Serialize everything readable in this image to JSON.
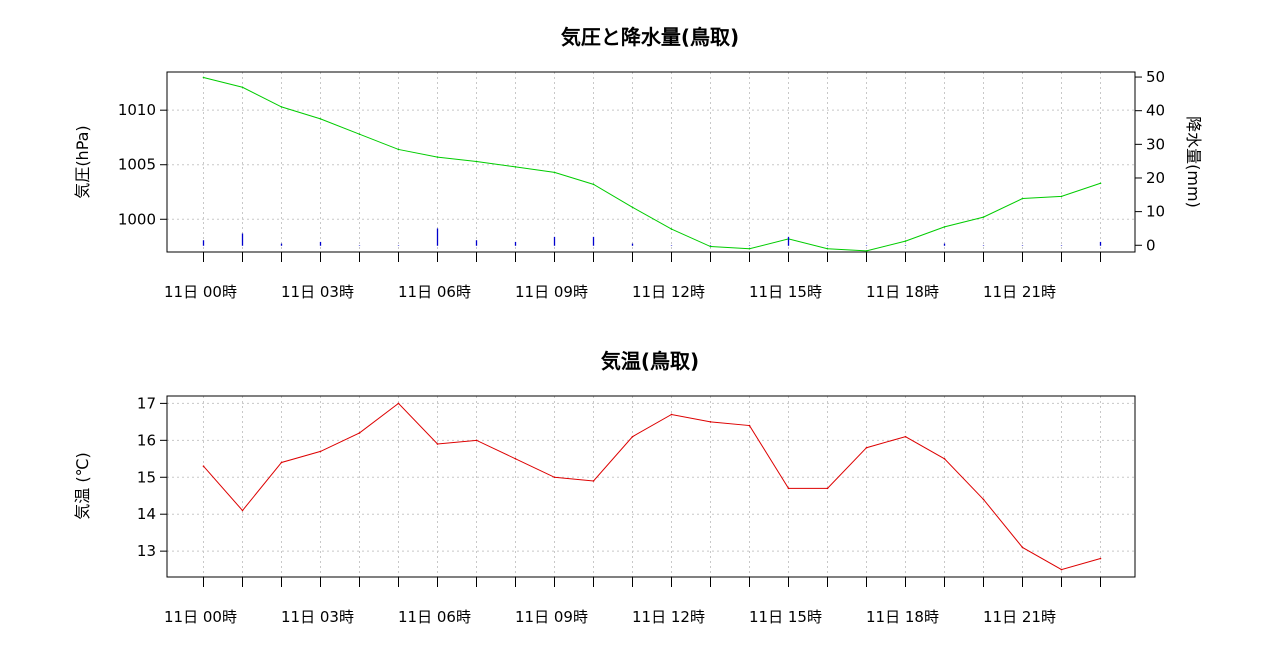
{
  "chart_data": [
    {
      "type": "line",
      "title": "気圧と降水量(鳥取)",
      "ylabel": "気圧(hPa)",
      "y2label": "降水量(mm)",
      "categories": [
        "00",
        "01",
        "02",
        "03",
        "04",
        "05",
        "06",
        "07",
        "08",
        "09",
        "10",
        "11",
        "12",
        "13",
        "14",
        "15",
        "16",
        "17",
        "18",
        "19",
        "20",
        "21",
        "22",
        "23"
      ],
      "x_tick_labels": [
        "11日 00時",
        "11日 03時",
        "11日 06時",
        "11日 09時",
        "11日 12時",
        "11日 15時",
        "11日 18時",
        "11日 21時"
      ],
      "x_tick_label_every": 3,
      "ylim": [
        997,
        1013.5
      ],
      "y_ticks": [
        1000,
        1005,
        1010
      ],
      "y2lim": [
        -2,
        51.5
      ],
      "y2_ticks": [
        0,
        10,
        20,
        30,
        40,
        50
      ],
      "grid": true,
      "series": [
        {
          "axis": "left",
          "color": "#00cc00",
          "values": [
            1013.0,
            1012.1,
            1010.3,
            1009.2,
            1007.8,
            1006.4,
            1005.7,
            1005.3,
            1004.8,
            1004.3,
            1003.2,
            1001.1,
            999.1,
            997.5,
            997.3,
            998.2,
            997.3,
            997.1,
            998.0,
            999.3,
            1000.2,
            1001.9,
            1002.1,
            1003.3
          ],
          "type": "line"
        },
        {
          "axis": "right",
          "color": "#0000cc",
          "values": [
            1.5,
            3.5,
            0.5,
            1.0,
            0.0,
            0.0,
            5.0,
            1.5,
            1.0,
            2.5,
            2.5,
            0.5,
            0.0,
            0.0,
            0.0,
            2.5,
            0.0,
            0.0,
            0.0,
            0.5,
            0.0,
            0.0,
            0.0,
            1.0
          ],
          "type": "bar"
        }
      ]
    },
    {
      "type": "line",
      "title": "気温(鳥取)",
      "ylabel": "気温 (℃)",
      "categories": [
        "00",
        "01",
        "02",
        "03",
        "04",
        "05",
        "06",
        "07",
        "08",
        "09",
        "10",
        "11",
        "12",
        "13",
        "14",
        "15",
        "16",
        "17",
        "18",
        "19",
        "20",
        "21",
        "22",
        "23"
      ],
      "x_tick_labels": [
        "11日 00時",
        "11日 03時",
        "11日 06時",
        "11日 09時",
        "11日 12時",
        "11日 15時",
        "11日 18時",
        "11日 21時"
      ],
      "x_tick_label_every": 3,
      "ylim": [
        12.3,
        17.2
      ],
      "y_ticks": [
        13,
        14,
        15,
        16,
        17
      ],
      "grid": true,
      "series": [
        {
          "axis": "left",
          "color": "#dd0000",
          "values": [
            15.3,
            14.1,
            15.4,
            15.7,
            16.2,
            17.0,
            15.9,
            16.0,
            15.5,
            15.0,
            14.9,
            16.1,
            16.7,
            16.5,
            16.4,
            14.7,
            14.7,
            15.8,
            16.1,
            15.5,
            14.4,
            13.1,
            12.5,
            12.8
          ],
          "type": "line"
        }
      ]
    }
  ]
}
